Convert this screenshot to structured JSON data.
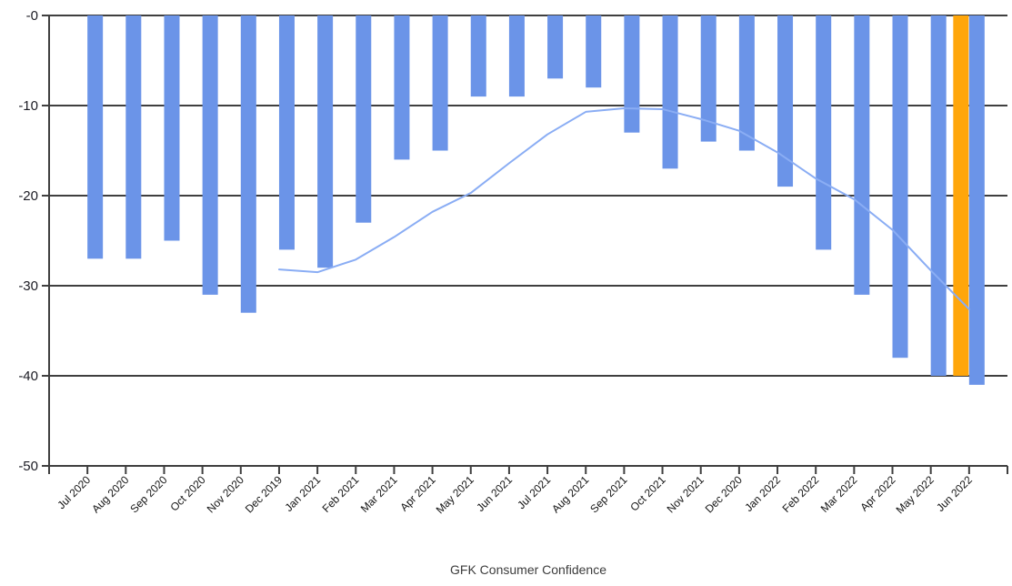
{
  "chart_data": {
    "type": "bar",
    "subtype": "combo-bar-line",
    "title": "GFK Consumer Confidence",
    "categories": [
      "Jul 2020",
      "Aug 2020",
      "Sep 2020",
      "Oct 2020",
      "Nov 2020",
      "Dec 2019",
      "Jan 2021",
      "Feb 2021",
      "Mar 2021",
      "Apr 2021",
      "May 2021",
      "Jun 2021",
      "Jul 2021",
      "Aug 2021",
      "Sep 2021",
      "Oct 2021",
      "Nov 2021",
      "Dec 2020",
      "Jan 2022",
      "Feb 2022",
      "Mar 2022",
      "Apr 2022",
      "May 2022",
      "Jun 2022"
    ],
    "series": [
      {
        "name": "Monthly confidence (blue bars)",
        "type": "bar",
        "color": "#6b94e8",
        "values": [
          -27,
          -27,
          -25,
          -31,
          -33,
          -26,
          -28,
          -23,
          -16,
          -15,
          -9,
          -9,
          -7,
          -8,
          -13,
          -17,
          -14,
          -15,
          -19,
          -26,
          -31,
          -38,
          -40,
          -41
        ]
      },
      {
        "name": "Highlighted bar (orange, drawn immediately left of Jun 2022 bar)",
        "type": "bar",
        "color": "#ffa60a",
        "category": "Jun 2022",
        "value": -40
      },
      {
        "name": "Trend line (light blue, starts at Dec 2019 column)",
        "type": "line",
        "color": "#8aadf4",
        "values": [
          null,
          null,
          null,
          null,
          null,
          -28.2,
          -28.5,
          -27.1,
          -24.6,
          -21.8,
          -19.7,
          -16.4,
          -13.2,
          -10.7,
          -10.3,
          -10.4,
          -11.5,
          -12.8,
          -15.2,
          -18.1,
          -20.4,
          -23.8,
          -28.3,
          -32.6
        ]
      }
    ],
    "ylim": [
      -50,
      0
    ],
    "ytick_labels": [
      "-0",
      "-10",
      "-20",
      "-30",
      "-40",
      "-50"
    ],
    "xlabel": "",
    "ylabel": "",
    "grid": "horizontal",
    "legend": "none",
    "colors": {
      "bar_blue": "#6b94e8",
      "bar_orange": "#ffa60a",
      "line_blue": "#8aadf4",
      "gridline": "#3f3f3f",
      "axis_text": "#1c1c24",
      "title_text": "#3c3c3c",
      "background": "#ffffff"
    }
  }
}
